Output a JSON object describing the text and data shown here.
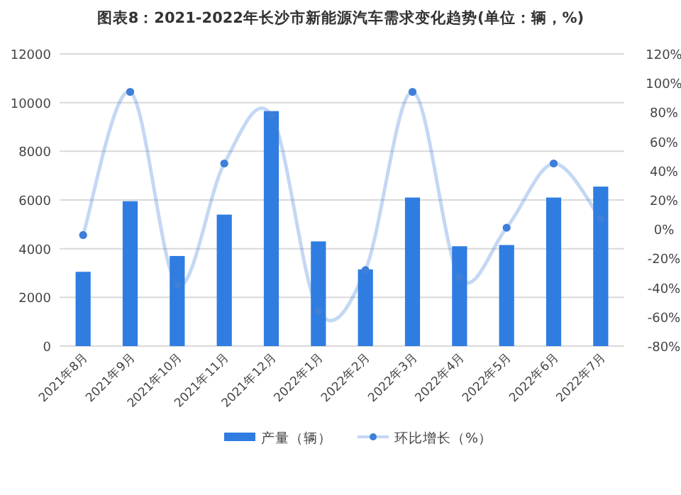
{
  "chart_data": {
    "type": "bar",
    "title": "图表8：2021-2022年长沙市新能源汽车需求变化趋势(单位：辆，%)",
    "categories": [
      "2021年8月",
      "2021年9月",
      "2021年10月",
      "2021年11月",
      "2021年12月",
      "2022年1月",
      "2022年2月",
      "2022年3月",
      "2022年4月",
      "2022年5月",
      "2022年6月",
      "2022年7月"
    ],
    "series": [
      {
        "name": "产量（辆）",
        "color": "#2f7de1",
        "values": [
          3050,
          5950,
          3700,
          5400,
          9650,
          4300,
          3150,
          6100,
          4100,
          4150,
          6100,
          6550
        ]
      },
      {
        "name": "环比增长（%）",
        "type": "line",
        "axis": "y2",
        "color": "#3d7fd9",
        "values": [
          -4,
          94,
          -38,
          45,
          78,
          -56,
          -28,
          94,
          -33,
          1,
          45,
          7
        ]
      }
    ],
    "ylim": [
      0,
      12000
    ],
    "yticks": [
      0,
      2000,
      4000,
      6000,
      8000,
      10000,
      12000
    ],
    "y2lim": [
      -80,
      120
    ],
    "y2ticks": [
      {
        "value": -80,
        "label": "-80%"
      },
      {
        "value": -60,
        "label": "-60%"
      },
      {
        "value": -40,
        "label": "-40%"
      },
      {
        "value": -20,
        "label": "-20%"
      },
      {
        "value": 0,
        "label": "0%"
      },
      {
        "value": 20,
        "label": "20%"
      },
      {
        "value": 40,
        "label": "40%"
      },
      {
        "value": 60,
        "label": "60%"
      },
      {
        "value": 80,
        "label": "80%"
      },
      {
        "value": 100,
        "label": "100%"
      },
      {
        "value": 120,
        "label": "120%"
      }
    ],
    "grid": "y",
    "legend": "bottom",
    "marker": "circle"
  }
}
